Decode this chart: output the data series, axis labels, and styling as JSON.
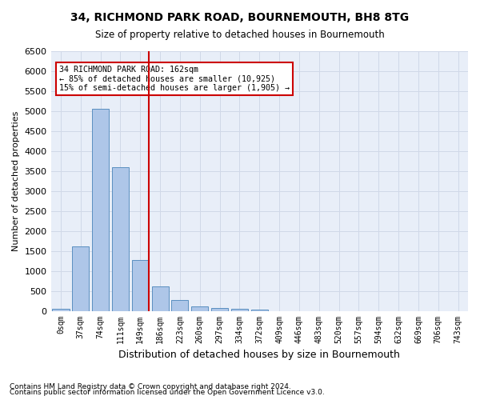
{
  "title1": "34, RICHMOND PARK ROAD, BOURNEMOUTH, BH8 8TG",
  "title2": "Size of property relative to detached houses in Bournemouth",
  "xlabel": "Distribution of detached houses by size in Bournemouth",
  "ylabel": "Number of detached properties",
  "footnote1": "Contains HM Land Registry data © Crown copyright and database right 2024.",
  "footnote2": "Contains public sector information licensed under the Open Government Licence v3.0.",
  "annotation_title": "34 RICHMOND PARK ROAD: 162sqm",
  "annotation_line2": "← 85% of detached houses are smaller (10,925)",
  "annotation_line3": "15% of semi-detached houses are larger (1,905) →",
  "bar_labels": [
    "0sqm",
    "37sqm",
    "74sqm",
    "111sqm",
    "149sqm",
    "186sqm",
    "223sqm",
    "260sqm",
    "297sqm",
    "334sqm",
    "372sqm",
    "409sqm",
    "446sqm",
    "483sqm",
    "520sqm",
    "557sqm",
    "594sqm",
    "632sqm",
    "669sqm",
    "706sqm",
    "743sqm"
  ],
  "bar_values": [
    50,
    1620,
    5050,
    3600,
    1280,
    620,
    270,
    120,
    80,
    50,
    30,
    0,
    0,
    0,
    0,
    0,
    0,
    0,
    0,
    0,
    0
  ],
  "bar_color": "#aec6e8",
  "bar_edge_color": "#5a8fc0",
  "vline_x": 4,
  "vline_color": "#cc0000",
  "annotation_box_color": "#cc0000",
  "ylim": [
    0,
    6500
  ],
  "yticks": [
    0,
    500,
    1000,
    1500,
    2000,
    2500,
    3000,
    3500,
    4000,
    4500,
    5000,
    5500,
    6000,
    6500
  ],
  "grid_color": "#d0d8e8",
  "bg_color": "#e8eef8"
}
